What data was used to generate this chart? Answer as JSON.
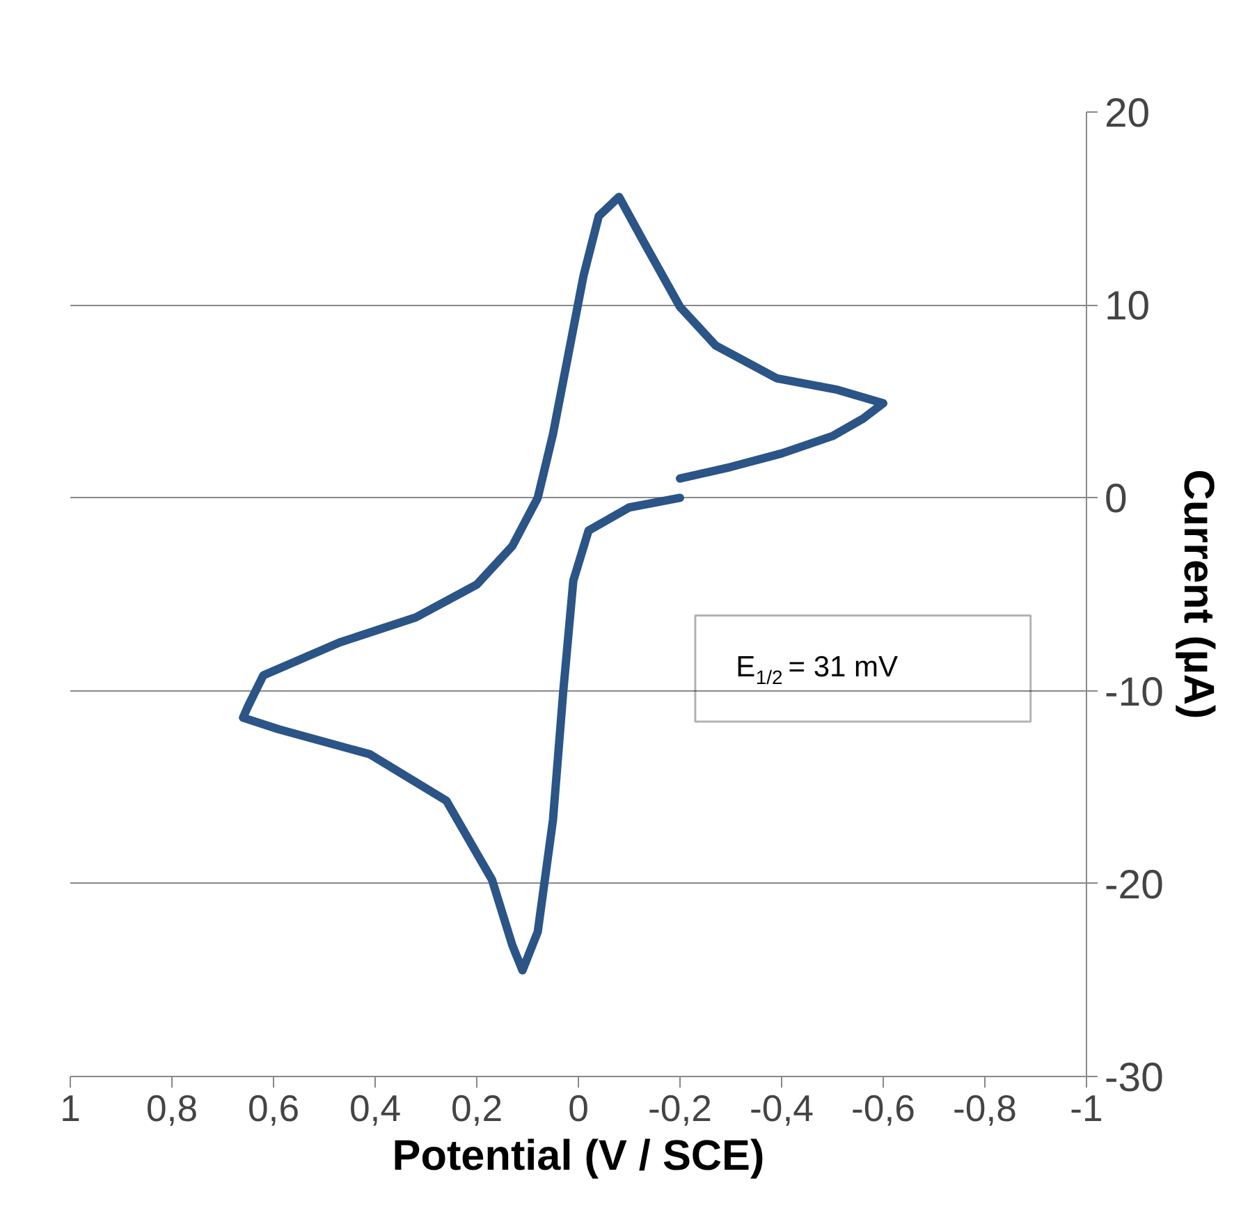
{
  "chart_data": {
    "type": "line",
    "xlabel": "Potential (V / SCE)",
    "ylabel": "Current (µA)",
    "xlim": [
      1,
      -1
    ],
    "ylim": [
      -30,
      20
    ],
    "xticks": [
      {
        "value": 1,
        "label": "1"
      },
      {
        "value": 0.8,
        "label": "0,8"
      },
      {
        "value": 0.6,
        "label": "0,6"
      },
      {
        "value": 0.4,
        "label": "0,4"
      },
      {
        "value": 0.2,
        "label": "0,2"
      },
      {
        "value": 0,
        "label": "0"
      },
      {
        "value": -0.2,
        "label": "-0,2"
      },
      {
        "value": -0.4,
        "label": "-0,4"
      },
      {
        "value": -0.6,
        "label": "-0,6"
      },
      {
        "value": -0.8,
        "label": "-0,8"
      },
      {
        "value": -1,
        "label": "-1"
      }
    ],
    "yticks": [
      -30,
      -20,
      -10,
      0,
      10,
      20
    ],
    "grid": "y",
    "marker": "none",
    "line_style": "solid",
    "series": [
      {
        "color": "#2b5487",
        "x": [
          -0.2,
          -0.3,
          -0.4,
          -0.5,
          -0.56,
          -0.6,
          -0.51,
          -0.39,
          -0.27,
          -0.2,
          -0.13,
          -0.08,
          -0.04,
          -0.01,
          0.02,
          0.05,
          0.08,
          0.13,
          0.2,
          0.32,
          0.47,
          0.62,
          0.65,
          0.66,
          0.59,
          0.41,
          0.26,
          0.17,
          0.13,
          0.11,
          0.08,
          0.05,
          0.03,
          0.01,
          -0.02,
          -0.1,
          -0.2
        ],
        "values": [
          1.0,
          1.6,
          2.3,
          3.2,
          4.1,
          4.9,
          5.6,
          6.2,
          7.9,
          9.9,
          13.2,
          15.6,
          14.6,
          11.5,
          7.4,
          3.3,
          0.0,
          -2.5,
          -4.5,
          -6.2,
          -7.5,
          -9.2,
          -10.8,
          -11.4,
          -12.0,
          -13.3,
          -15.7,
          -19.8,
          -23.2,
          -24.5,
          -22.5,
          -16.7,
          -10.1,
          -4.3,
          -1.7,
          -0.5,
          0.0
        ]
      }
    ],
    "annotations": [
      "E$_{1/2}$ = 31 mV"
    ]
  }
}
